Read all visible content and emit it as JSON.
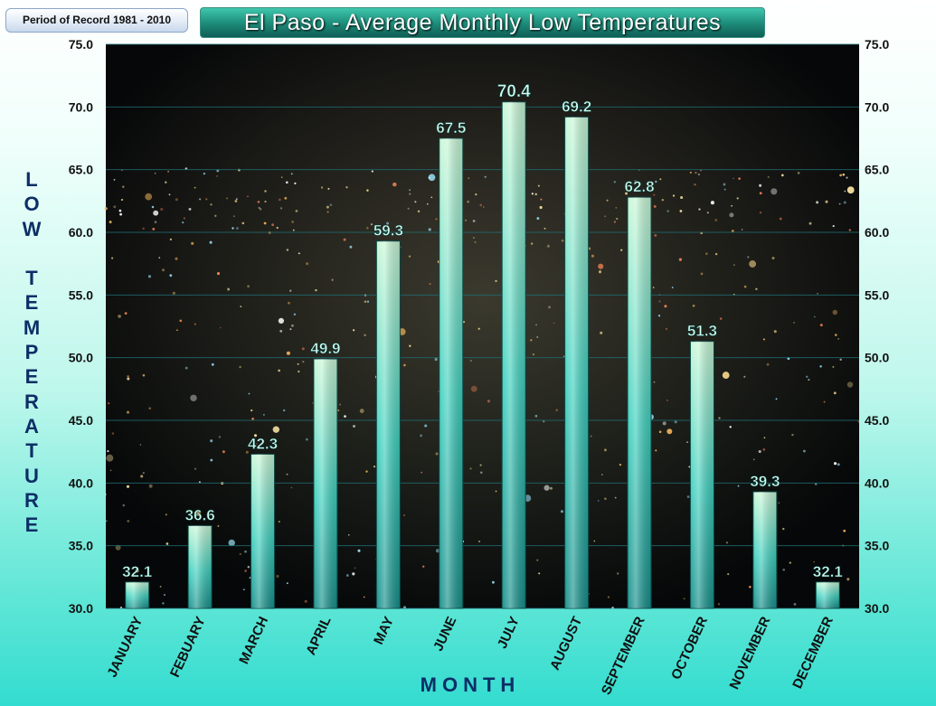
{
  "badge": "Period of Record  1981 - 2010",
  "colors": {
    "plot_bg": "#0b0f12",
    "bar_low": "#1fb8ae",
    "bar_high": "#b8f5cf",
    "grid": "#1f6e74",
    "tick_text": "#111111",
    "label_text": "#0d2e66",
    "value_text": "#cffff2"
  },
  "chart_data": {
    "type": "bar",
    "title": "El Paso  -  Average  Monthly  Low  Temperatures",
    "xlabel": "MONTH",
    "ylabel": "LOW TEMPERATURE",
    "categories": [
      "JANUARY",
      "FEBUARY",
      "MARCH",
      "APRIL",
      "MAY",
      "JUNE",
      "JULY",
      "AUGUST",
      "SEPTEMBER",
      "OCTOBER",
      "NOVEMBER",
      "DECEMBER"
    ],
    "values": [
      32.1,
      36.6,
      42.3,
      49.9,
      59.3,
      67.5,
      70.4,
      69.2,
      62.8,
      51.3,
      39.3,
      32.1
    ],
    "value_labels": [
      "32.1",
      "36.6",
      "42.3",
      "49.9",
      "59.3",
      "67.5",
      "70.4",
      "69.2",
      "62.8",
      "51.3",
      "39.3",
      "32.1"
    ],
    "ylim": [
      30,
      75
    ],
    "yticks": [
      "30.0",
      "35.0",
      "40.0",
      "45.0",
      "50.0",
      "55.0",
      "60.0",
      "65.0",
      "70.0",
      "75.0"
    ],
    "grid": true,
    "secondary_axis": true,
    "legend": "none"
  }
}
